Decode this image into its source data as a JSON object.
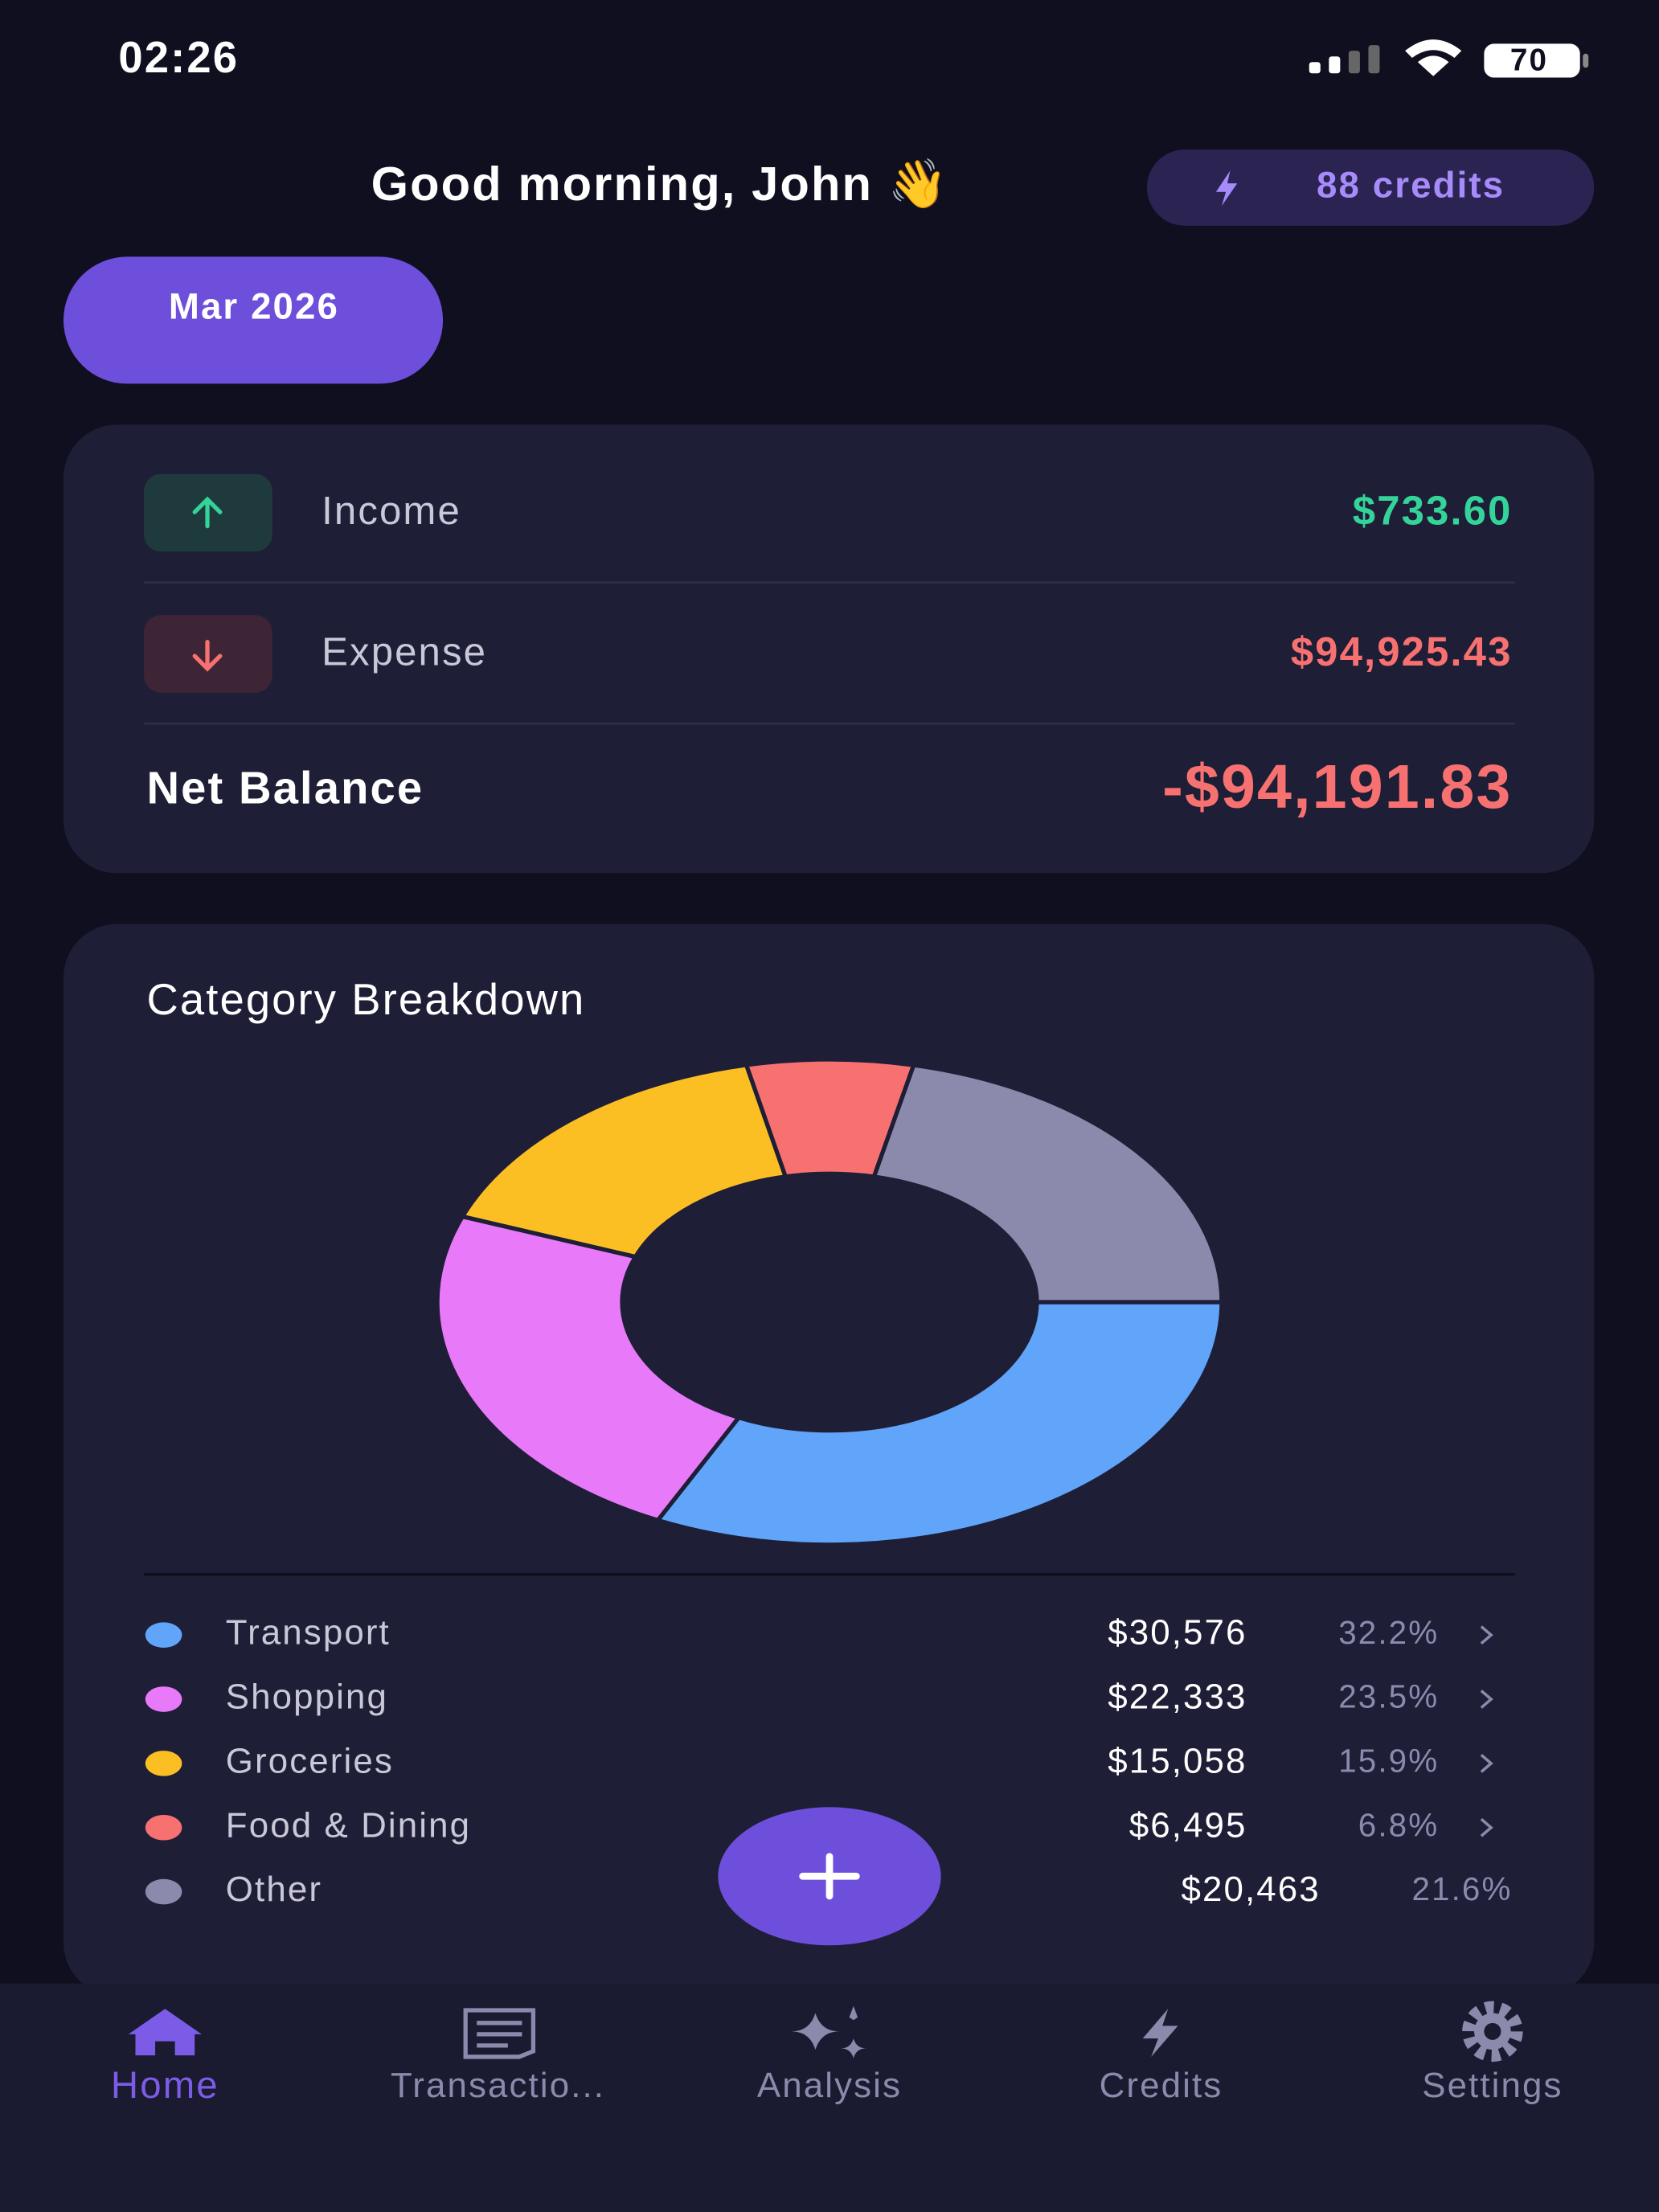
{
  "status_bar": {
    "time": "02:26",
    "battery": "70"
  },
  "header": {
    "greeting": "Good morning, John 👋",
    "credits": "88 credits",
    "month": "Mar 2026"
  },
  "summary": {
    "income_label": "Income",
    "income": "$733.60",
    "expense_label": "Expense",
    "expense": "$94,925.43",
    "net_label": "Net Balance",
    "net": "-$94,191.83"
  },
  "chart_data": {
    "type": "donut",
    "title": "Category Breakdown",
    "categories": [
      "Transport",
      "Shopping",
      "Groceries",
      "Food & Dining",
      "Other"
    ],
    "values": [
      30576,
      22333,
      15058,
      6495,
      20463
    ],
    "value_labels": [
      "$30,576",
      "$22,333",
      "$15,058",
      "$6,495",
      "$20,463"
    ],
    "share_labels": [
      "32.2%",
      "23.5%",
      "15.9%",
      "6.8%",
      "21.6%"
    ],
    "colors": [
      "#60a5fa",
      "#e879f9",
      "#fbbf24",
      "#f87171",
      "#8b8aad"
    ]
  },
  "nav": {
    "items": [
      "Home",
      "Transactio...",
      "Analysis",
      "Credits",
      "Settings"
    ],
    "active": 0
  }
}
